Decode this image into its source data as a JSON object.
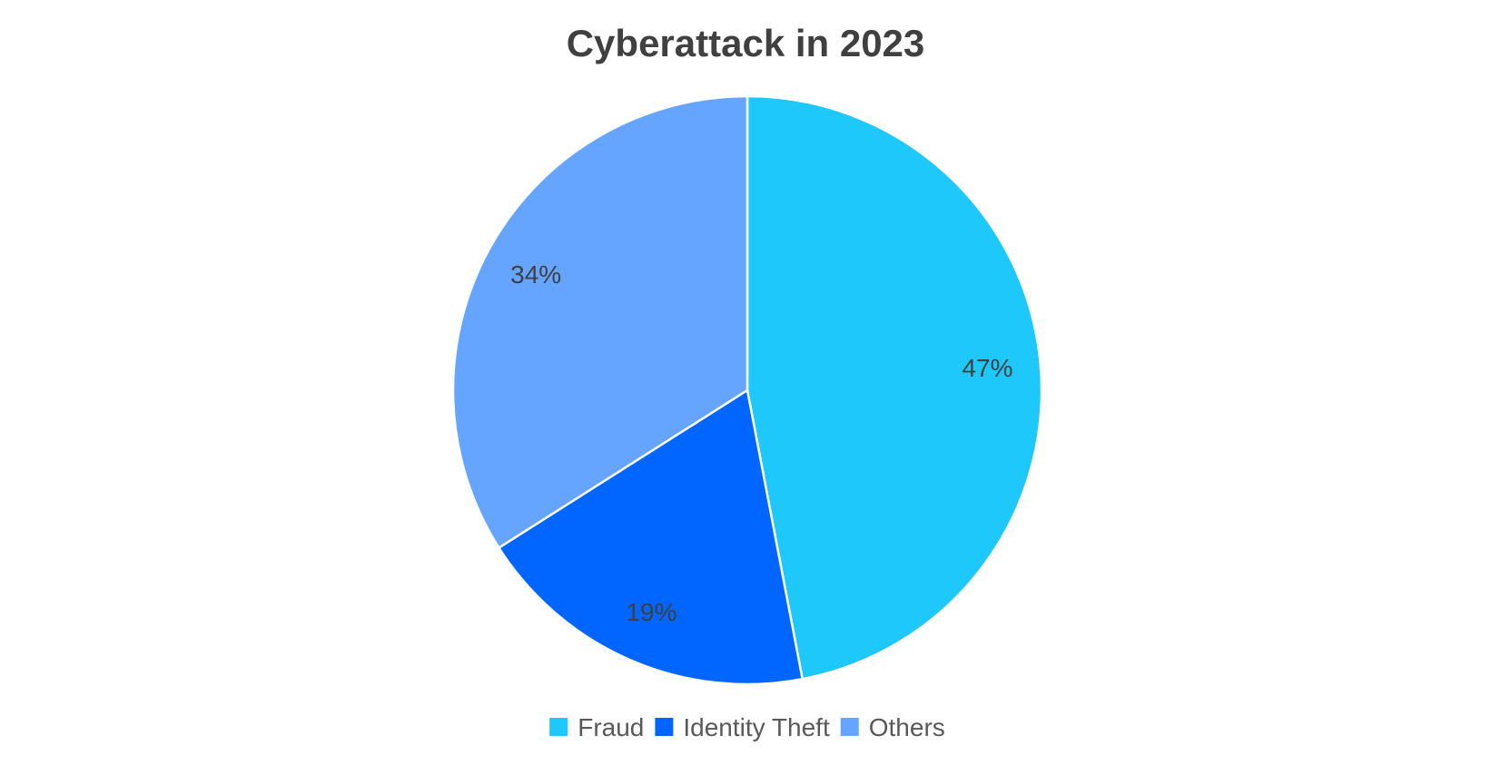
{
  "chart_data": {
    "type": "pie",
    "title": "Cyberattack in 2023",
    "categories": [
      "Fraud",
      "Identity Theft",
      "Others"
    ],
    "values": [
      47,
      19,
      34
    ],
    "data_labels": [
      "47%",
      "19%",
      "34%"
    ],
    "colors": [
      "#1EC8FB",
      "#0066FF",
      "#66A5FF"
    ],
    "legend_position": "bottom",
    "start_angle": "12 o'clock",
    "direction": "clockwise"
  }
}
